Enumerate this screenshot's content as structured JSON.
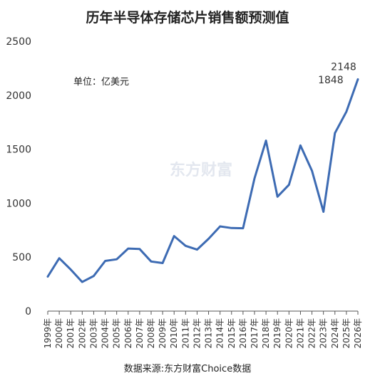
{
  "chart_data": {
    "type": "line",
    "title": "历年半导体存储芯片销售额预测值",
    "unit_note": "单位：亿美元",
    "source": "数据来源:东方财富Choice数据",
    "watermark": "东方财富",
    "categories": [
      "1999年",
      "2000年",
      "2001年",
      "2002年",
      "2003年",
      "2004年",
      "2005年",
      "2006年",
      "2007年",
      "2008年",
      "2009年",
      "2010年",
      "2011年",
      "2012年",
      "2013年",
      "2014年",
      "2015年",
      "2016年",
      "2017年",
      "2018年",
      "2019年",
      "2020年",
      "2021年",
      "2022年",
      "2023年",
      "2024年",
      "2025年",
      "2026年"
    ],
    "series": [
      {
        "color": "#3d6bb3",
        "values": [
          320,
          490,
          385,
          270,
          325,
          465,
          480,
          580,
          575,
          460,
          445,
          695,
          605,
          570,
          670,
          785,
          770,
          768,
          1230,
          1580,
          1060,
          1170,
          1535,
          1300,
          920,
          1650,
          1848,
          2148
        ]
      }
    ],
    "data_labels": [
      {
        "index": 26,
        "text": "1848"
      },
      {
        "index": 27,
        "text": "2148"
      }
    ],
    "ylim": [
      0,
      2500
    ],
    "yticks": [
      "0",
      "500",
      "1000",
      "1500",
      "2000",
      "2500"
    ],
    "grid": false
  }
}
